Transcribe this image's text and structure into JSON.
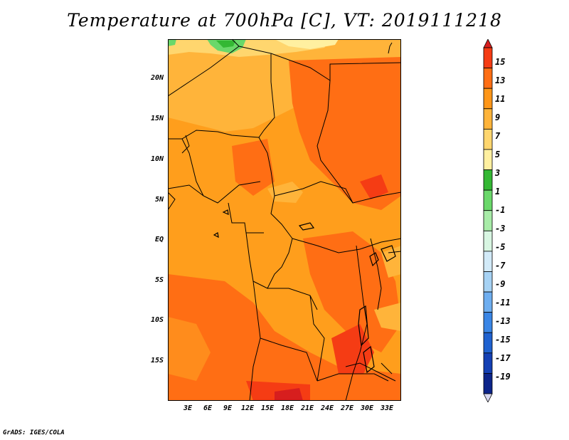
{
  "title": "Temperature at 700hPa [C], VT: 2019111218",
  "footer": "GrADS: IGES/COLA",
  "map": {
    "lat_ticks": [
      "20N",
      "15N",
      "10N",
      "5N",
      "EQ",
      "5S",
      "10S",
      "15S"
    ],
    "lon_ticks": [
      "3E",
      "6E",
      "9E",
      "12E",
      "15E",
      "18E",
      "21E",
      "24E",
      "27E",
      "30E",
      "33E"
    ]
  },
  "colorbar": {
    "labels": [
      "15",
      "13",
      "11",
      "9",
      "7",
      "5",
      "3",
      "1",
      "-1",
      "-3",
      "-5",
      "-7",
      "-9",
      "-11",
      "-13",
      "-15",
      "-17",
      "-19"
    ],
    "colors": [
      "#d71e1e",
      "#f53c14",
      "#ff6e14",
      "#ff9618",
      "#ffb43a",
      "#ffd66e",
      "#fff0a0",
      "#34b834",
      "#6ad86a",
      "#a8eca8",
      "#d8f6e2",
      "#d2eaf8",
      "#a6d2f4",
      "#6eaef0",
      "#3a86e6",
      "#1f62d0",
      "#1440b4",
      "#0c248a",
      "#06105a"
    ]
  },
  "chart_data": {
    "type": "heatmap",
    "title": "Temperature at 700hPa [C], VT: 2019111218",
    "xlabel": "",
    "ylabel": "",
    "x_ticks": [
      "3E",
      "6E",
      "9E",
      "12E",
      "15E",
      "18E",
      "21E",
      "24E",
      "27E",
      "30E",
      "33E"
    ],
    "y_ticks": [
      "20N",
      "15N",
      "10N",
      "5N",
      "EQ",
      "5S",
      "10S",
      "15S"
    ],
    "colorbar_levels": [
      15,
      13,
      11,
      9,
      7,
      5,
      3,
      1,
      -1,
      -3,
      -5,
      -7,
      -9,
      -11,
      -13,
      -15,
      -17,
      -19
    ],
    "grid": false
  }
}
